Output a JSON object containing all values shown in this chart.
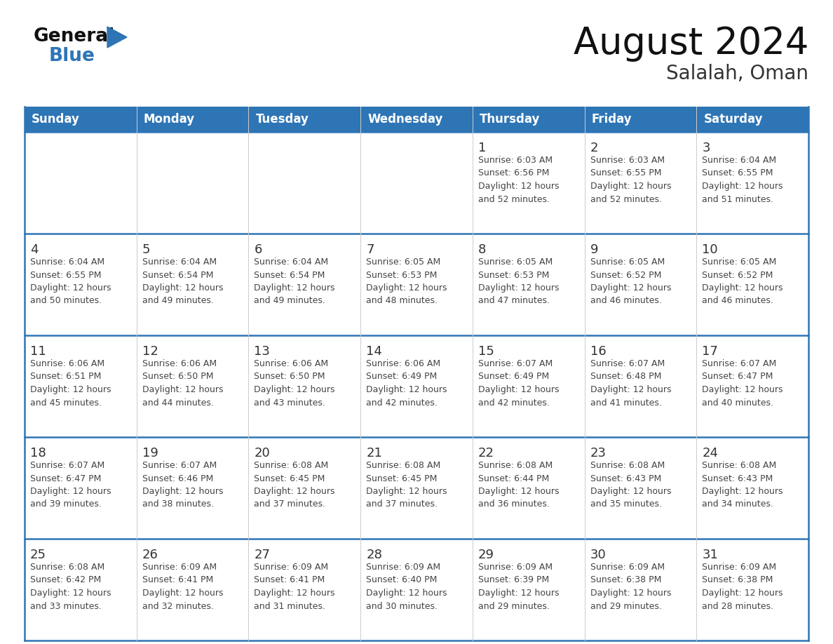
{
  "title": "August 2024",
  "subtitle": "Salalah, Oman",
  "days_of_week": [
    "Sunday",
    "Monday",
    "Tuesday",
    "Wednesday",
    "Thursday",
    "Friday",
    "Saturday"
  ],
  "header_bg": "#2E75B6",
  "header_text": "#FFFFFF",
  "cell_border_color": "#2E75B6",
  "day_number_color": "#333333",
  "cell_text_color": "#444444",
  "title_color": "#111111",
  "subtitle_color": "#333333",
  "logo_general_color": "#111111",
  "logo_blue_color": "#2E75B6",
  "bg_color": "#FFFFFF",
  "row_divider_color": "#2E75B6",
  "col_divider_color": "#CCCCCC",
  "weeks": [
    [
      {
        "day": null,
        "info": null
      },
      {
        "day": null,
        "info": null
      },
      {
        "day": null,
        "info": null
      },
      {
        "day": null,
        "info": null
      },
      {
        "day": 1,
        "info": "Sunrise: 6:03 AM\nSunset: 6:56 PM\nDaylight: 12 hours\nand 52 minutes."
      },
      {
        "day": 2,
        "info": "Sunrise: 6:03 AM\nSunset: 6:55 PM\nDaylight: 12 hours\nand 52 minutes."
      },
      {
        "day": 3,
        "info": "Sunrise: 6:04 AM\nSunset: 6:55 PM\nDaylight: 12 hours\nand 51 minutes."
      }
    ],
    [
      {
        "day": 4,
        "info": "Sunrise: 6:04 AM\nSunset: 6:55 PM\nDaylight: 12 hours\nand 50 minutes."
      },
      {
        "day": 5,
        "info": "Sunrise: 6:04 AM\nSunset: 6:54 PM\nDaylight: 12 hours\nand 49 minutes."
      },
      {
        "day": 6,
        "info": "Sunrise: 6:04 AM\nSunset: 6:54 PM\nDaylight: 12 hours\nand 49 minutes."
      },
      {
        "day": 7,
        "info": "Sunrise: 6:05 AM\nSunset: 6:53 PM\nDaylight: 12 hours\nand 48 minutes."
      },
      {
        "day": 8,
        "info": "Sunrise: 6:05 AM\nSunset: 6:53 PM\nDaylight: 12 hours\nand 47 minutes."
      },
      {
        "day": 9,
        "info": "Sunrise: 6:05 AM\nSunset: 6:52 PM\nDaylight: 12 hours\nand 46 minutes."
      },
      {
        "day": 10,
        "info": "Sunrise: 6:05 AM\nSunset: 6:52 PM\nDaylight: 12 hours\nand 46 minutes."
      }
    ],
    [
      {
        "day": 11,
        "info": "Sunrise: 6:06 AM\nSunset: 6:51 PM\nDaylight: 12 hours\nand 45 minutes."
      },
      {
        "day": 12,
        "info": "Sunrise: 6:06 AM\nSunset: 6:50 PM\nDaylight: 12 hours\nand 44 minutes."
      },
      {
        "day": 13,
        "info": "Sunrise: 6:06 AM\nSunset: 6:50 PM\nDaylight: 12 hours\nand 43 minutes."
      },
      {
        "day": 14,
        "info": "Sunrise: 6:06 AM\nSunset: 6:49 PM\nDaylight: 12 hours\nand 42 minutes."
      },
      {
        "day": 15,
        "info": "Sunrise: 6:07 AM\nSunset: 6:49 PM\nDaylight: 12 hours\nand 42 minutes."
      },
      {
        "day": 16,
        "info": "Sunrise: 6:07 AM\nSunset: 6:48 PM\nDaylight: 12 hours\nand 41 minutes."
      },
      {
        "day": 17,
        "info": "Sunrise: 6:07 AM\nSunset: 6:47 PM\nDaylight: 12 hours\nand 40 minutes."
      }
    ],
    [
      {
        "day": 18,
        "info": "Sunrise: 6:07 AM\nSunset: 6:47 PM\nDaylight: 12 hours\nand 39 minutes."
      },
      {
        "day": 19,
        "info": "Sunrise: 6:07 AM\nSunset: 6:46 PM\nDaylight: 12 hours\nand 38 minutes."
      },
      {
        "day": 20,
        "info": "Sunrise: 6:08 AM\nSunset: 6:45 PM\nDaylight: 12 hours\nand 37 minutes."
      },
      {
        "day": 21,
        "info": "Sunrise: 6:08 AM\nSunset: 6:45 PM\nDaylight: 12 hours\nand 37 minutes."
      },
      {
        "day": 22,
        "info": "Sunrise: 6:08 AM\nSunset: 6:44 PM\nDaylight: 12 hours\nand 36 minutes."
      },
      {
        "day": 23,
        "info": "Sunrise: 6:08 AM\nSunset: 6:43 PM\nDaylight: 12 hours\nand 35 minutes."
      },
      {
        "day": 24,
        "info": "Sunrise: 6:08 AM\nSunset: 6:43 PM\nDaylight: 12 hours\nand 34 minutes."
      }
    ],
    [
      {
        "day": 25,
        "info": "Sunrise: 6:08 AM\nSunset: 6:42 PM\nDaylight: 12 hours\nand 33 minutes."
      },
      {
        "day": 26,
        "info": "Sunrise: 6:09 AM\nSunset: 6:41 PM\nDaylight: 12 hours\nand 32 minutes."
      },
      {
        "day": 27,
        "info": "Sunrise: 6:09 AM\nSunset: 6:41 PM\nDaylight: 12 hours\nand 31 minutes."
      },
      {
        "day": 28,
        "info": "Sunrise: 6:09 AM\nSunset: 6:40 PM\nDaylight: 12 hours\nand 30 minutes."
      },
      {
        "day": 29,
        "info": "Sunrise: 6:09 AM\nSunset: 6:39 PM\nDaylight: 12 hours\nand 29 minutes."
      },
      {
        "day": 30,
        "info": "Sunrise: 6:09 AM\nSunset: 6:38 PM\nDaylight: 12 hours\nand 29 minutes."
      },
      {
        "day": 31,
        "info": "Sunrise: 6:09 AM\nSunset: 6:38 PM\nDaylight: 12 hours\nand 28 minutes."
      }
    ]
  ]
}
